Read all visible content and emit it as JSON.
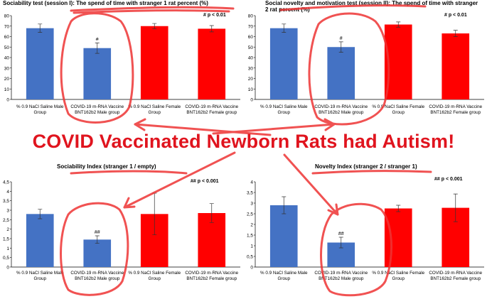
{
  "headline": "COVID Vaccinated Newborn Rats had Autism!",
  "colors": {
    "blue": "#4472c4",
    "red": "#ff0000",
    "headline": "#e0141e",
    "annotation": "#ee3434"
  },
  "chart_data": [
    {
      "type": "bar",
      "title": "Sociability test (session I): The spend of time with stranger 1 rat percent (%)",
      "significance_note": "# p < 0.01",
      "categories": [
        "% 0.9 NaCl Saline Male Group",
        "COVID-19 m-RNA Vaccine BNT162b2 Male group",
        "% 0.9 NaCl Saline Female Group",
        "COVID-19 m-RNA Vaccine BNT162b2 Female group"
      ],
      "category_lines": [
        [
          "% 0.9 NaCl Saline Male",
          "Group"
        ],
        [
          "COVID-19 m-RNA Vaccine",
          "BNT162b2 Male group"
        ],
        [
          "% 0.9 NaCl Saline Female",
          "Group"
        ],
        [
          "COVID-19 m-RNA Vaccine",
          "BNT162b2 Female group"
        ]
      ],
      "values": [
        68,
        49,
        70,
        67.5
      ],
      "errors": [
        4,
        5,
        2.5,
        3
      ],
      "bar_colors": [
        "#4472c4",
        "#4472c4",
        "#ff0000",
        "#ff0000"
      ],
      "markers": [
        "",
        "#",
        "",
        ""
      ],
      "ylim": [
        0,
        80
      ],
      "yticks": [
        "0",
        "10",
        "20",
        "30",
        "40",
        "50",
        "60",
        "70",
        "80"
      ]
    },
    {
      "type": "bar",
      "title": "Social novelty and motivation test (session II): The spend of time with stranger 2 rat percent (%)",
      "significance_note": "# p < 0.01",
      "categories": [
        "% 0.9 NaCl Saline Male Group",
        "COVID-19 m-RNA Vaccine BNT162b2 Male group",
        "% 0.9 NaCl Saline Female Group",
        "COVID-19 m-RNA Vaccine BNT162b2 Female group"
      ],
      "category_lines": [
        [
          "% 0.9 NaCl Saline Male",
          "Group"
        ],
        [
          "COVID-19 m-RNA Vaccine",
          "BNT162b2 Male group"
        ],
        [
          "% 0.9 NaCl Saline Female",
          "Group"
        ],
        [
          "COVID-19 m-RNA Vaccine",
          "BNT162b2 Female group"
        ]
      ],
      "values": [
        68,
        50,
        71.5,
        63
      ],
      "errors": [
        4,
        5,
        2.5,
        3
      ],
      "bar_colors": [
        "#4472c4",
        "#4472c4",
        "#ff0000",
        "#ff0000"
      ],
      "markers": [
        "",
        "#",
        "",
        ""
      ],
      "ylim": [
        0,
        80
      ],
      "yticks": [
        "0",
        "10",
        "20",
        "30",
        "40",
        "50",
        "60",
        "70",
        "80"
      ]
    },
    {
      "type": "bar",
      "title": "Sociability Index (stranger 1 / empty)",
      "significance_note": "## p < 0.001",
      "categories": [
        "% 0.9 NaCl Saline Male Group",
        "COVID-19 m-RNA Vaccine BNT162b2 Male group",
        "% 0.9 NaCl Saline Female Group",
        "COVID-19 m-RNA Vaccine BNT162b2 Female group"
      ],
      "category_lines": [
        [
          "% 0.9 NaCl Saline Male",
          "Group"
        ],
        [
          "COVID-19 m-RNA Vaccine",
          "BNT162b2 Male group"
        ],
        [
          "% 0.9 NaCl Saline Female",
          "Group"
        ],
        [
          "COVID-19 m-RNA Vaccine",
          "BNT162b2 Female group"
        ]
      ],
      "values": [
        2.8,
        1.45,
        2.8,
        2.85
      ],
      "errors": [
        0.25,
        0.2,
        1.1,
        0.5
      ],
      "bar_colors": [
        "#4472c4",
        "#4472c4",
        "#ff0000",
        "#ff0000"
      ],
      "markers": [
        "",
        "##",
        "",
        ""
      ],
      "ylim": [
        0,
        4.5
      ],
      "yticks": [
        "0",
        "0,5",
        "1",
        "1,5",
        "2",
        "2,5",
        "3",
        "3,5",
        "4",
        "4,5"
      ]
    },
    {
      "type": "bar",
      "title": "Novelty Index (stranger 2 / stranger 1)",
      "significance_note": "## p < 0.001",
      "categories": [
        "% 0.9 NaCl Saline Male Group",
        "COVID-19 m-RNA Vaccine BNT162b2 Male group",
        "% 0.9 NaCl Saline Female Group",
        "COVID-19 m-RNA Vaccine BNT162b2 Female group"
      ],
      "category_lines": [
        [
          "% 0.9 NaCl Saline Male",
          "Group"
        ],
        [
          "COVID-19 m-RNA Vaccine",
          "BNT162b2 Male group"
        ],
        [
          "% 0.9 NaCl Saline Female",
          "Group"
        ],
        [
          "COVID-19 m-RNA Vaccine",
          "BNT162b2 Female group"
        ]
      ],
      "values": [
        2.9,
        1.15,
        2.75,
        2.78
      ],
      "errors": [
        0.4,
        0.25,
        0.15,
        0.65
      ],
      "bar_colors": [
        "#4472c4",
        "#4472c4",
        "#ff0000",
        "#ff0000"
      ],
      "markers": [
        "",
        "##",
        "",
        ""
      ],
      "ylim": [
        0,
        4
      ],
      "yticks": [
        "0",
        "0,5",
        "1",
        "1,5",
        "2",
        "2,5",
        "3",
        "3,5",
        "4"
      ]
    }
  ]
}
